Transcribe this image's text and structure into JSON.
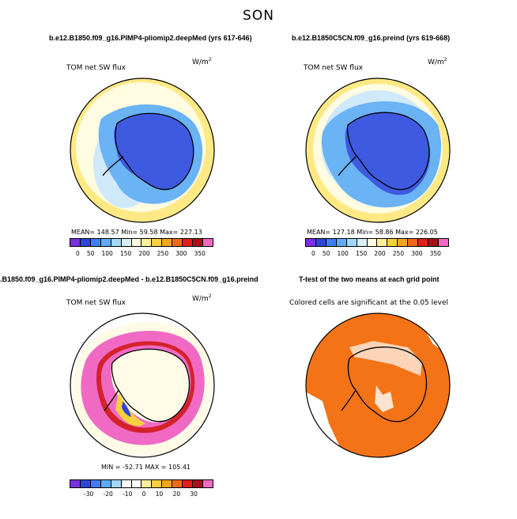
{
  "season": "SON",
  "colors": {
    "abs_scale": [
      "#7b2fe0",
      "#2e46d8",
      "#3f7ef2",
      "#60aaf8",
      "#a5d6fb",
      "#d8effb",
      "#fffde0",
      "#fff19a",
      "#fad040",
      "#f5a421",
      "#ef6a1a",
      "#e41c1c",
      "#a8101a",
      "#f06ac4"
    ],
    "diff_scale": [
      "#7b2fe0",
      "#2e46d8",
      "#3f7ef2",
      "#60aaf8",
      "#a5d6fb",
      "#ffffff",
      "#ffffff",
      "#fff19a",
      "#fad040",
      "#f5a421",
      "#ef6a1a",
      "#e41c1c",
      "#a8101a",
      "#f06ac4"
    ],
    "sig": "#f47316",
    "ice_dark": "#3d5ae0",
    "ice_mid": "#6ab3f5",
    "ice_pale": "#cfe9fb",
    "ocean_pale": "#fffce2",
    "ocean_yellow": "#ffe985",
    "diff_pink": "#f06ac4",
    "diff_red": "#d3232a",
    "diff_cream": "#fffbe6"
  },
  "panels": {
    "p1": {
      "title": "b.e12.B1850.f09_g16.PIMP4-pliomip2.deepMed (yrs 617-646)",
      "field": "TOM net SW flux",
      "units": "W/m",
      "units_sup": "2",
      "stats": "MEAN= 148.57   Min=  59.58   Max= 227.13",
      "ticks": [
        "0",
        "50",
        "100",
        "150",
        "200",
        "250",
        "300",
        "350"
      ]
    },
    "p2": {
      "title": "b.e12.B1850C5CN.f09_g16.preind (yrs 619-668)",
      "field": "TOM net SW flux",
      "units": "W/m",
      "units_sup": "2",
      "stats": "MEAN= 127.18   Min=  58.86   Max= 226.05",
      "ticks": [
        "0",
        "50",
        "100",
        "150",
        "200",
        "250",
        "300",
        "350"
      ]
    },
    "p3": {
      "title": ".B1850.f09_g16.PIMP4-pliomip2.deepMed - b.e12.B1850C5CN.f09_g16.preind",
      "field": "TOM net SW flux",
      "units": "W/m",
      "units_sup": "2",
      "stats": "MIN = -52.71  MAX = 105.41",
      "ticks": [
        "-30",
        "-20",
        "-10",
        "0",
        "10",
        "20",
        "30"
      ]
    },
    "p4": {
      "title": "T-test of the two means at each grid point",
      "field": "Colored cells are significant at the 0.05 level"
    }
  }
}
